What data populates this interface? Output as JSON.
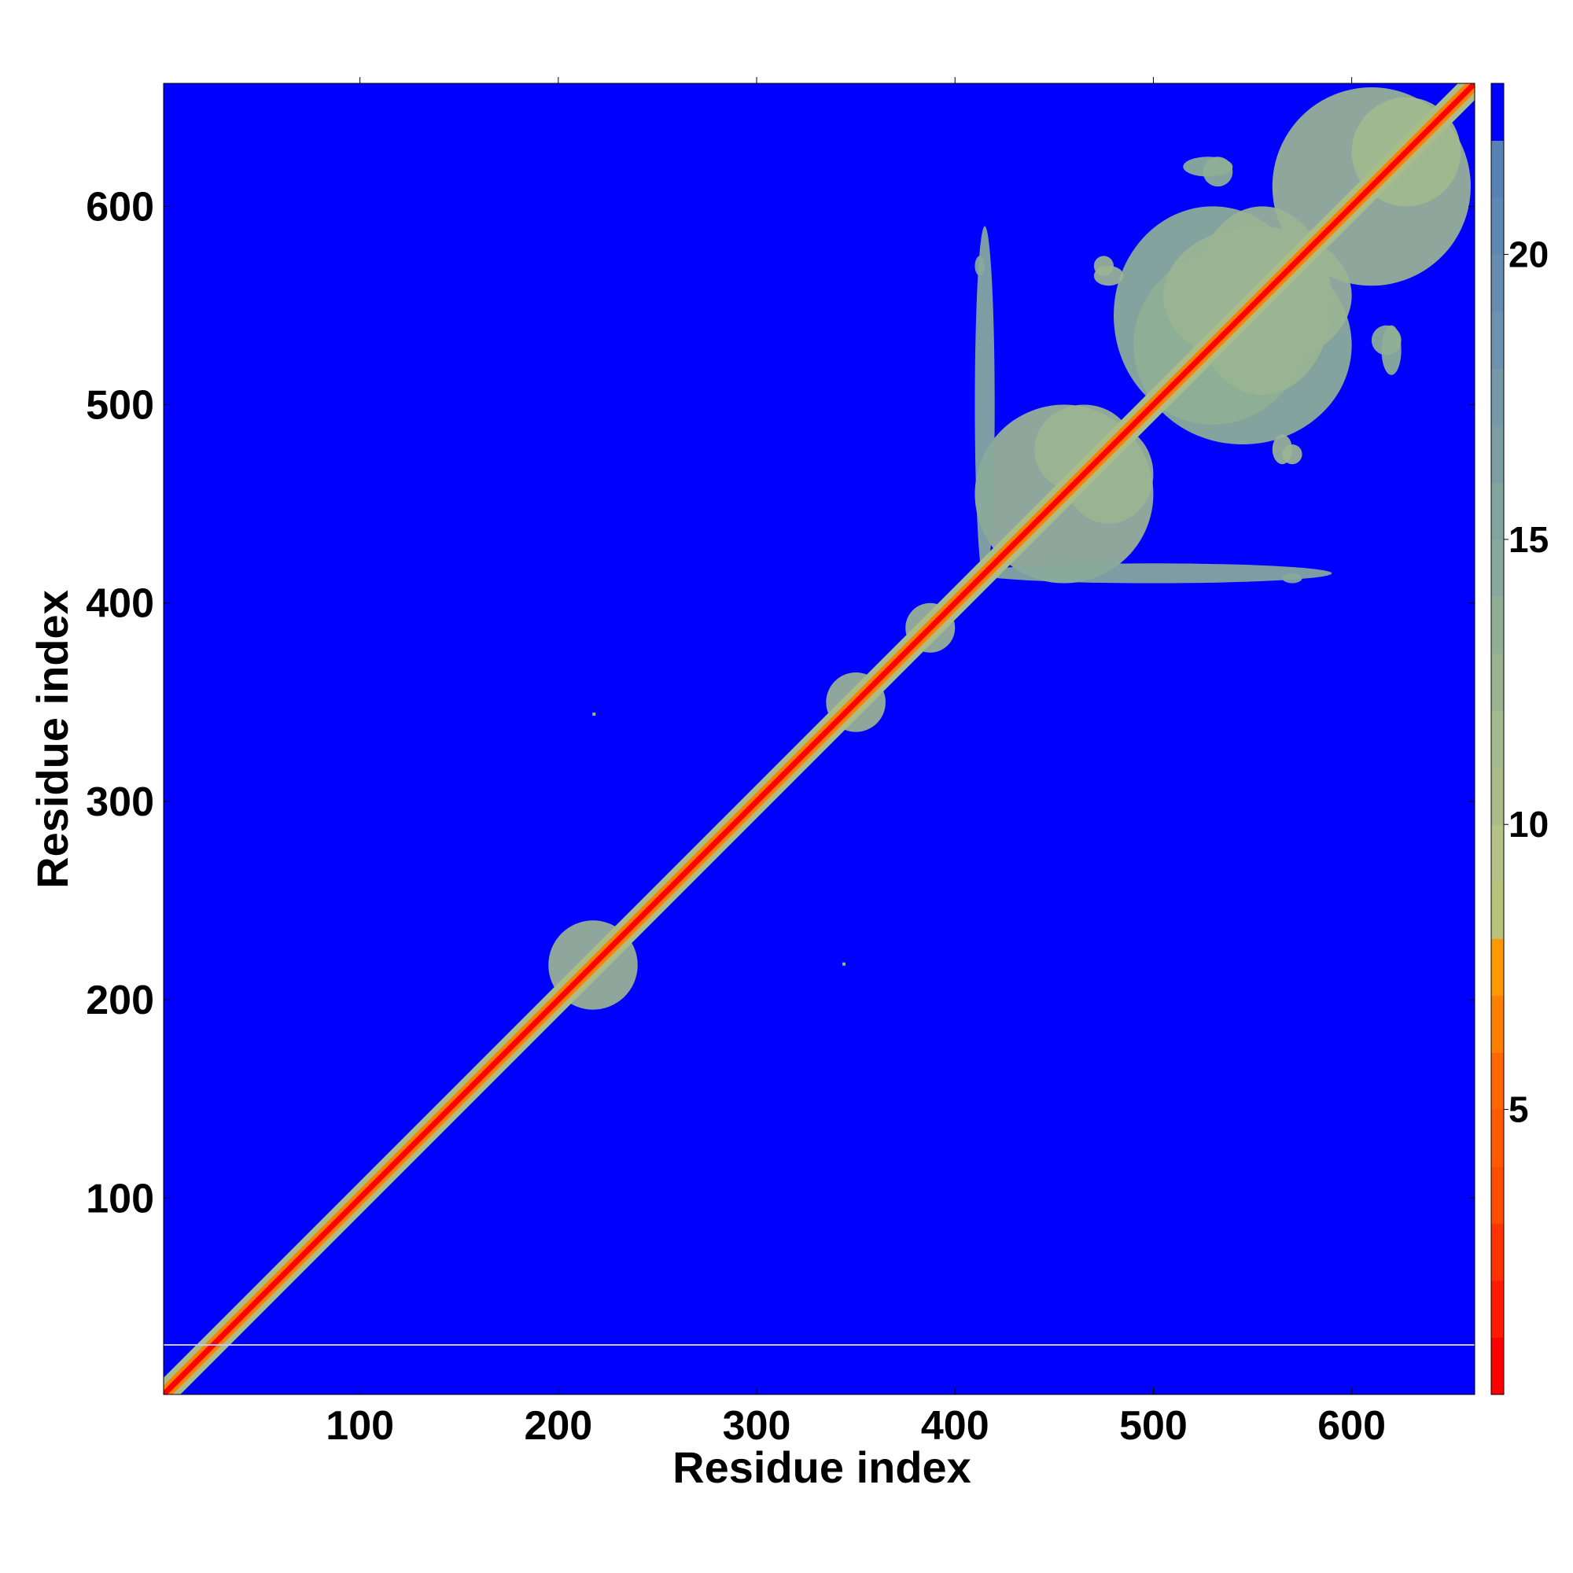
{
  "chart_data": {
    "type": "heatmap",
    "title": "",
    "xlabel": "Residue index",
    "ylabel": "Residue index",
    "xlim": [
      1,
      662
    ],
    "ylim": [
      1,
      662
    ],
    "x_ticks": [
      100,
      200,
      300,
      400,
      500,
      600
    ],
    "y_ticks": [
      100,
      200,
      300,
      400,
      500,
      600
    ],
    "colorbar": {
      "range": [
        0,
        23
      ],
      "ticks": [
        5,
        10,
        15,
        20
      ],
      "bands": [
        {
          "from": 0,
          "to": 1,
          "color": "#ff0000"
        },
        {
          "from": 1,
          "to": 2,
          "color": "#ff1a00"
        },
        {
          "from": 2,
          "to": 3,
          "color": "#ff3300"
        },
        {
          "from": 3,
          "to": 4,
          "color": "#ff4d00"
        },
        {
          "from": 4,
          "to": 5,
          "color": "#ff5a00"
        },
        {
          "from": 5,
          "to": 6,
          "color": "#ff6600"
        },
        {
          "from": 6,
          "to": 7,
          "color": "#ff8000"
        },
        {
          "from": 7,
          "to": 8,
          "color": "#ff9900"
        },
        {
          "from": 8,
          "to": 9,
          "color": "#b8c47c"
        },
        {
          "from": 9,
          "to": 10,
          "color": "#b4c285"
        },
        {
          "from": 10,
          "to": 11,
          "color": "#aabd88"
        },
        {
          "from": 11,
          "to": 12,
          "color": "#a2ba8e"
        },
        {
          "from": 12,
          "to": 13,
          "color": "#9ab492"
        },
        {
          "from": 13,
          "to": 14,
          "color": "#8fb096"
        },
        {
          "from": 14,
          "to": 15,
          "color": "#88a99b"
        },
        {
          "from": 15,
          "to": 16,
          "color": "#83a49e"
        },
        {
          "from": 16,
          "to": 17,
          "color": "#7b9ea5"
        },
        {
          "from": 17,
          "to": 18,
          "color": "#7599a8"
        },
        {
          "from": 18,
          "to": 19,
          "color": "#6e92ad"
        },
        {
          "from": 19,
          "to": 20,
          "color": "#668daf"
        },
        {
          "from": 20,
          "to": 21,
          "color": "#5e87b3"
        },
        {
          "from": 21,
          "to": 22,
          "color": "#5882b5"
        },
        {
          "from": 22,
          "to": 23,
          "color": "#0000ff"
        }
      ]
    },
    "background_color": "#0000ff",
    "contact_regions": [
      {
        "x": [
          195,
          240
        ],
        "y": [
          195,
          240
        ],
        "level": 12
      },
      {
        "x": [
          335,
          365
        ],
        "y": [
          335,
          365
        ],
        "level": 12
      },
      {
        "x": [
          375,
          400
        ],
        "y": [
          375,
          400
        ],
        "level": 12
      },
      {
        "x": [
          410,
          500
        ],
        "y": [
          410,
          500
        ],
        "level": 12
      },
      {
        "x": [
          410,
          590
        ],
        "y": [
          410,
          420
        ],
        "level": 14
      },
      {
        "x": [
          455,
          500
        ],
        "y": [
          440,
          490
        ],
        "level": 12
      },
      {
        "x": [
          490,
          600
        ],
        "y": [
          480,
          580
        ],
        "level": 13
      },
      {
        "x": [
          520,
          590
        ],
        "y": [
          505,
          600
        ],
        "level": 12
      },
      {
        "x": [
          560,
          660
        ],
        "y": [
          560,
          660
        ],
        "level": 12
      },
      {
        "x": [
          600,
          655
        ],
        "y": [
          600,
          655
        ],
        "level": 11
      },
      {
        "x": [
          470,
          480
        ],
        "y": [
          565,
          575
        ],
        "level": 12
      },
      {
        "x": [
          410,
          415
        ],
        "y": [
          565,
          575
        ],
        "level": 14
      },
      {
        "x": [
          560,
          570
        ],
        "y": [
          470,
          485
        ],
        "level": 12
      },
      {
        "x": [
          610,
          625
        ],
        "y": [
          525,
          540
        ],
        "level": 13
      },
      {
        "x": [
          515,
          540
        ],
        "y": [
          615,
          625
        ],
        "level": 13
      }
    ],
    "contact_points": [
      {
        "x": 218,
        "y": 344
      },
      {
        "x": 344,
        "y": 218
      }
    ],
    "marker_line_y": 26
  }
}
